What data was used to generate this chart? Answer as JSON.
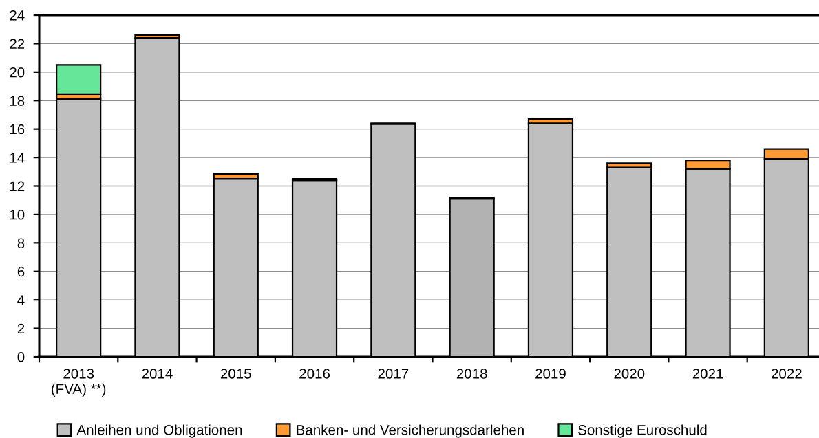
{
  "chart_data": {
    "type": "bar",
    "stacked": true,
    "categories": [
      "2013\n(FVA) **)",
      "2014",
      "2015",
      "2016",
      "2017",
      "2018",
      "2019",
      "2020",
      "2021",
      "2022"
    ],
    "series": [
      {
        "name": "Anleihen und Obligationen",
        "color": "#bfbfbf",
        "colors": [
          "#bfbfbf",
          "#bfbfbf",
          "#bfbfbf",
          "#bfbfbf",
          "#bfbfbf",
          "#b2b2b2",
          "#bfbfbf",
          "#bfbfbf",
          "#bfbfbf",
          "#bfbfbf"
        ],
        "values": [
          18.1,
          22.4,
          12.5,
          12.4,
          16.35,
          11.1,
          16.4,
          13.3,
          13.2,
          13.9
        ]
      },
      {
        "name": "Banken- und Versicherungsdarlehen",
        "color": "#ff9933",
        "values": [
          0.35,
          0.2,
          0.35,
          0.1,
          0.05,
          0.1,
          0.3,
          0.3,
          0.6,
          0.7
        ]
      },
      {
        "name": "Sonstige Euroschuld",
        "color": "#66e699",
        "values": [
          2.05,
          null,
          null,
          null,
          null,
          null,
          null,
          null,
          null,
          null
        ]
      }
    ],
    "ylim": [
      0,
      24
    ],
    "yticks": [
      0,
      2,
      4,
      6,
      8,
      10,
      12,
      14,
      16,
      18,
      20,
      22,
      24
    ],
    "grid": "y",
    "legend": "bottom"
  }
}
